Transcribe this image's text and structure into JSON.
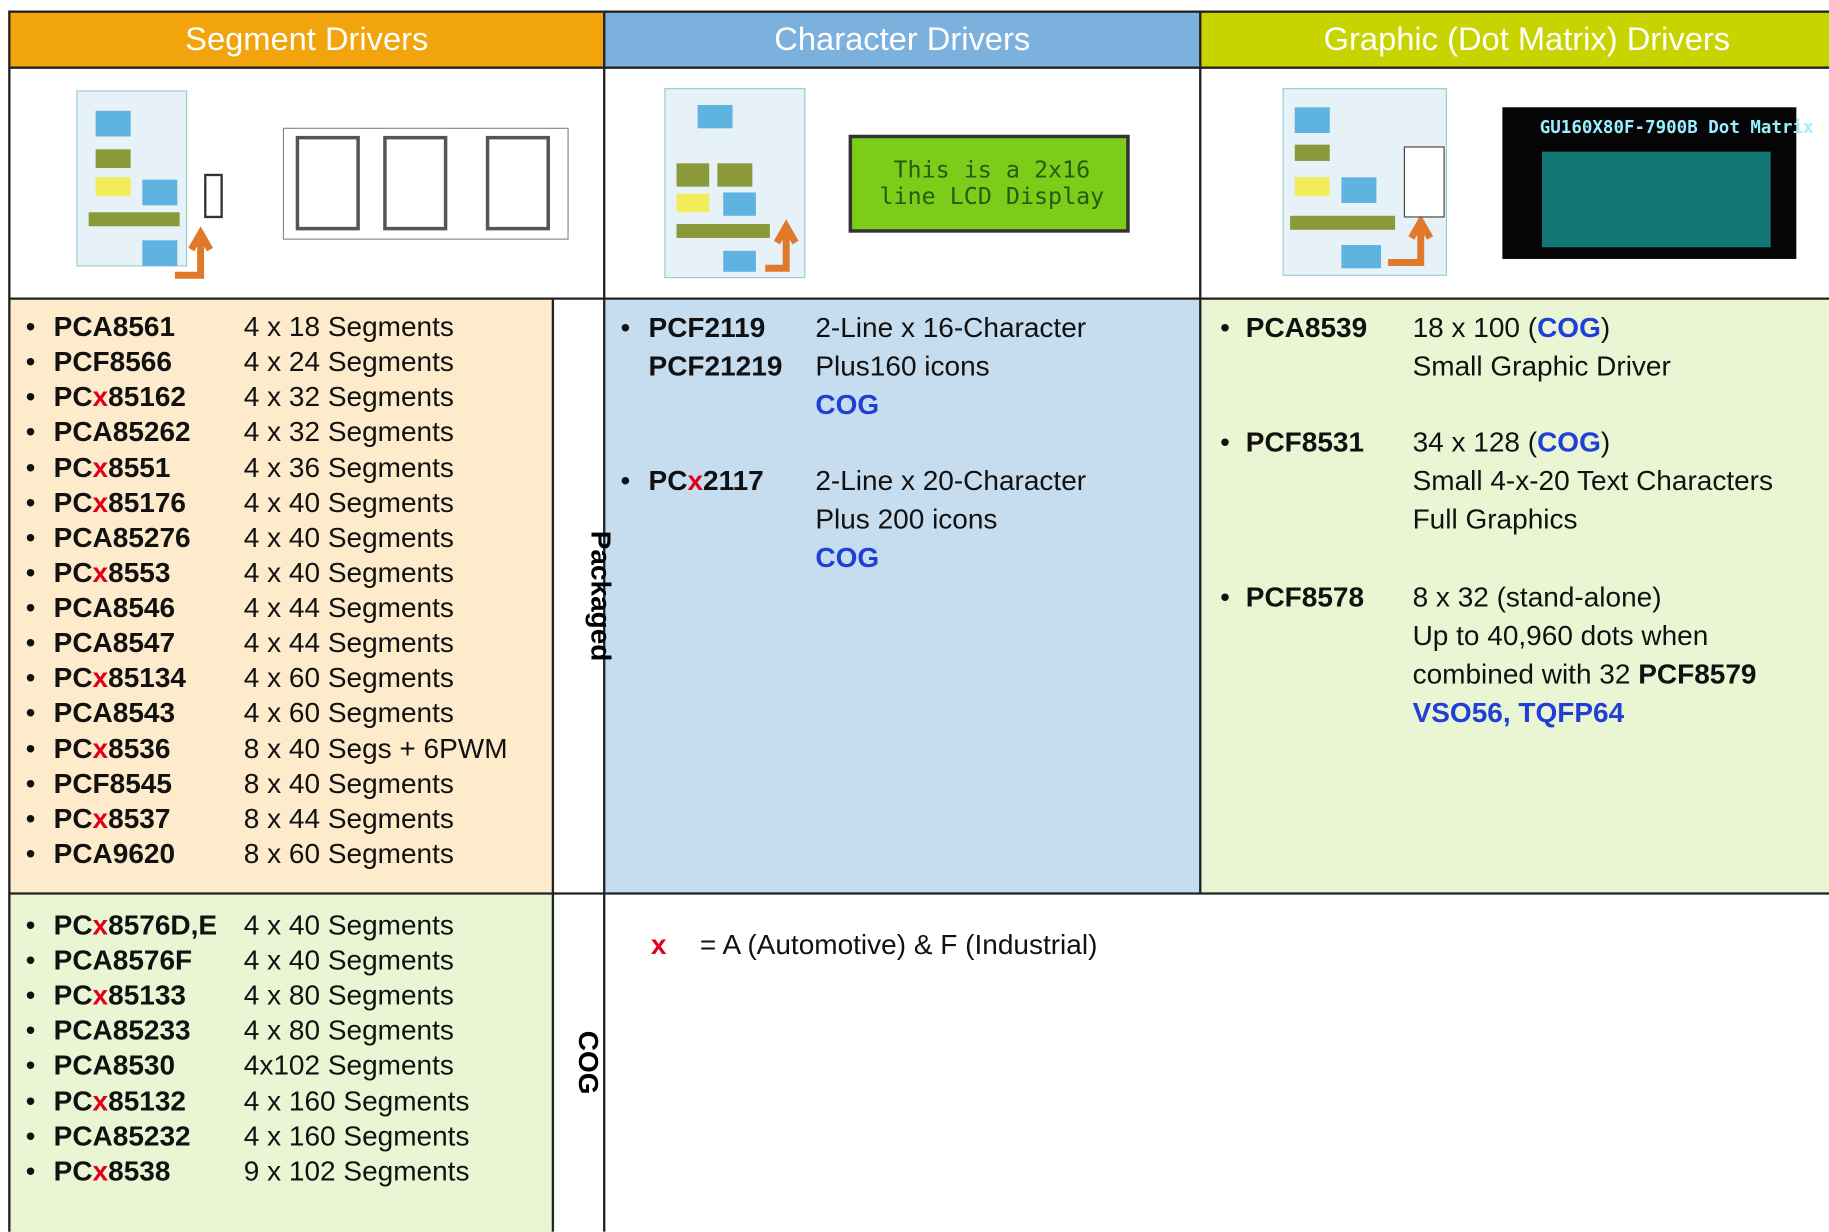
{
  "columns": {
    "segment": {
      "header": "Segment Drivers",
      "packaged": [
        {
          "name": [
            "PCA8561"
          ],
          "spec": "4 x 18 Segments"
        },
        {
          "name": [
            "PCF8566"
          ],
          "spec": "4 x 24 Segments"
        },
        {
          "name": [
            "PC",
            "x",
            "85162"
          ],
          "spec": "4 x 32 Segments"
        },
        {
          "name": [
            "PCA85262"
          ],
          "spec": "4 x 32 Segments"
        },
        {
          "name": [
            "PC",
            "x",
            "8551"
          ],
          "spec": "4 x 36 Segments"
        },
        {
          "name": [
            "PC",
            "x",
            "85176"
          ],
          "spec": "4 x 40 Segments"
        },
        {
          "name": [
            "PCA85276"
          ],
          "spec": "4 x 40 Segments"
        },
        {
          "name": [
            "PC",
            "x",
            "8553"
          ],
          "spec": "4 x 40 Segments"
        },
        {
          "name": [
            "PCA8546"
          ],
          "spec": "4 x 44 Segments"
        },
        {
          "name": [
            "PCA8547"
          ],
          "spec": "4 x 44 Segments"
        },
        {
          "name": [
            "PC",
            "x",
            "85134"
          ],
          "spec": "4 x 60 Segments"
        },
        {
          "name": [
            "PCA8543"
          ],
          "spec": "4 x 60 Segments"
        },
        {
          "name": [
            "PC",
            "x",
            "8536"
          ],
          "spec": "8 x 40 Segs + 6PWM"
        },
        {
          "name": [
            "PCF8545"
          ],
          "spec": "8 x 40 Segments"
        },
        {
          "name": [
            "PC",
            "x",
            "8537"
          ],
          "spec": "8 x 44 Segments"
        },
        {
          "name": [
            "PCA9620"
          ],
          "spec": "8 x 60 Segments"
        }
      ],
      "cog": [
        {
          "name": [
            "PC",
            "x",
            "8576D,E"
          ],
          "spec": "4 x 40 Segments"
        },
        {
          "name": [
            "PCA8576F"
          ],
          "spec": "4 x 40 Segments"
        },
        {
          "name": [
            "PC",
            "x",
            "85133"
          ],
          "spec": "4 x 80 Segments"
        },
        {
          "name": [
            "PCA85233"
          ],
          "spec": "4 x 80 Segments"
        },
        {
          "name": [
            "PCA8530"
          ],
          "spec": "4x102 Segments"
        },
        {
          "name": [
            "PC",
            "x",
            "85132"
          ],
          "spec": "4 x 160 Segments"
        },
        {
          "name": [
            "PCA85232"
          ],
          "spec": "4 x 160 Segments"
        },
        {
          "name": [
            "PC",
            "x",
            "8538"
          ],
          "spec": "9 x 102 Segments"
        }
      ]
    },
    "character": {
      "header": "Character Drivers",
      "lcd_text": [
        "This is a 2x16",
        "line LCD Display"
      ],
      "items": [
        {
          "names": [
            "PCF2119",
            "PCF21219"
          ],
          "lines": [
            "2-Line x 16-Character",
            "Plus160 icons"
          ],
          "package": "COG"
        },
        {
          "name": [
            "PC",
            "x",
            "2117"
          ],
          "lines": [
            "2-Line x 20-Character",
            "Plus 200 icons"
          ],
          "package": "COG"
        }
      ]
    },
    "graphic": {
      "header": "Graphic (Dot Matrix) Drivers",
      "display_title": "GU160X80F-7900B Dot Matrix",
      "items": [
        {
          "name": "PCA8539",
          "spec": [
            "18 x 100 (",
            "COG",
            ")"
          ],
          "lines": [
            "Small Graphic Driver"
          ]
        },
        {
          "name": "PCF8531",
          "spec": [
            "34 x 128 (",
            "COG",
            ")"
          ],
          "lines": [
            "Small 4-x-20 Text Characters",
            "Full Graphics"
          ]
        },
        {
          "name": "PCF8578",
          "spec": [
            "8  x 32 (stand-alone)"
          ],
          "lines": [
            "Up to 40,960 dots when",
            "combined with 32 "
          ],
          "bold": "PCF8579",
          "package": "VSO56, TQFP64"
        }
      ]
    }
  },
  "row_labels": {
    "packaged": "Packaged",
    "cog": "COG"
  },
  "note": {
    "symbol": "x",
    "text": "= A (Automotive) & F (Industrial)"
  }
}
